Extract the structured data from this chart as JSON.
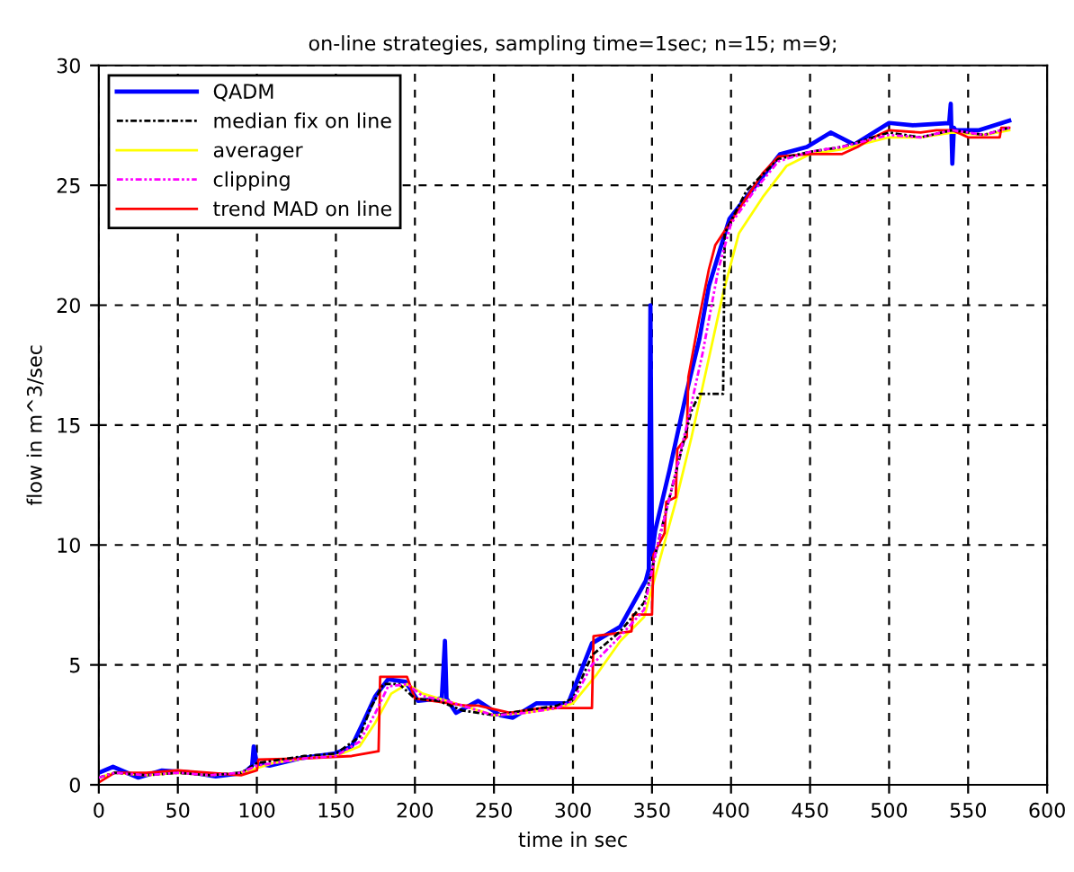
{
  "chart_data": {
    "type": "line",
    "title": "on-line strategies, sampling time=1sec; n=15; m=9;",
    "xlabel": "time in sec",
    "ylabel": "flow in m^3/sec",
    "xlim": [
      0,
      600
    ],
    "ylim": [
      0,
      30
    ],
    "xticks": [
      0,
      50,
      100,
      150,
      200,
      250,
      300,
      350,
      400,
      450,
      500,
      550,
      600
    ],
    "yticks": [
      0,
      5,
      10,
      15,
      20,
      25,
      30
    ],
    "grid": true,
    "legend": "top left",
    "series": [
      {
        "name": "QADM",
        "color": "#0000ff",
        "line_style": "solid",
        "x": [
          0,
          9,
          25,
          40,
          60,
          74,
          92,
          97,
          98,
          100,
          108,
          127,
          149,
          160,
          168,
          175,
          183,
          194,
          202,
          217,
          219,
          220,
          226,
          240,
          254,
          262,
          277,
          297,
          312,
          330,
          346,
          348,
          349,
          350,
          352,
          361,
          372,
          380,
          386,
          399,
          418,
          431,
          448,
          463,
          478,
          500,
          515,
          538,
          539,
          540,
          541,
          542,
          557,
          576
        ],
        "values": [
          0.5,
          0.75,
          0.3,
          0.6,
          0.5,
          0.35,
          0.5,
          0.8,
          1.6,
          0.9,
          0.8,
          1.1,
          1.3,
          1.6,
          2.7,
          3.7,
          4.4,
          4.3,
          3.5,
          3.6,
          6.0,
          3.6,
          3.0,
          3.5,
          2.9,
          2.8,
          3.4,
          3.4,
          5.9,
          6.6,
          8.5,
          9.0,
          20.0,
          9.6,
          10.6,
          13.1,
          16.4,
          18.6,
          20.8,
          23.6,
          25.2,
          26.3,
          26.6,
          27.2,
          26.7,
          27.6,
          27.5,
          27.6,
          28.4,
          25.9,
          27.4,
          27.3,
          27.3,
          27.7
        ]
      },
      {
        "name": "median fix on line",
        "color": "#000000",
        "line_style": "dashdot",
        "x": [
          0,
          10,
          30,
          50,
          70,
          90,
          100,
          110,
          130,
          150,
          165,
          172,
          180,
          190,
          200,
          215,
          230,
          250,
          270,
          290,
          300,
          312,
          330,
          345,
          350,
          355,
          365,
          375,
          380,
          395,
          396,
          410,
          430,
          450,
          470,
          500,
          520,
          540,
          560,
          576
        ],
        "values": [
          0.3,
          0.5,
          0.4,
          0.5,
          0.4,
          0.5,
          0.9,
          1.0,
          1.2,
          1.3,
          2.0,
          3.2,
          4.2,
          4.2,
          3.6,
          3.5,
          3.1,
          2.9,
          3.1,
          3.3,
          3.6,
          5.4,
          6.4,
          7.6,
          9.0,
          10.4,
          13.0,
          15.6,
          16.3,
          16.3,
          23.0,
          24.8,
          26.1,
          26.4,
          26.6,
          27.2,
          27.0,
          27.3,
          27.1,
          27.4
        ]
      },
      {
        "name": "averager",
        "color": "#ffff00",
        "line_style": "solid",
        "x": [
          0,
          10,
          30,
          50,
          70,
          90,
          100,
          110,
          130,
          150,
          165,
          175,
          185,
          195,
          205,
          220,
          235,
          250,
          270,
          290,
          300,
          315,
          330,
          345,
          355,
          365,
          375,
          385,
          395,
          405,
          420,
          435,
          450,
          470,
          500,
          520,
          540,
          560,
          576
        ],
        "values": [
          0.3,
          0.5,
          0.4,
          0.5,
          0.4,
          0.5,
          0.7,
          0.9,
          1.1,
          1.2,
          1.6,
          2.6,
          3.8,
          4.2,
          3.8,
          3.5,
          3.2,
          2.9,
          3.0,
          3.2,
          3.4,
          4.6,
          6.0,
          7.0,
          9.4,
          11.8,
          14.5,
          17.5,
          20.5,
          23.0,
          24.5,
          25.8,
          26.3,
          26.5,
          27.0,
          27.0,
          27.2,
          27.1,
          27.3
        ]
      },
      {
        "name": "clipping",
        "color": "#ff00ff",
        "line_style": "dashdotdot",
        "x": [
          0,
          10,
          30,
          50,
          70,
          90,
          100,
          110,
          130,
          150,
          165,
          175,
          183,
          195,
          205,
          220,
          235,
          250,
          270,
          290,
          300,
          312,
          330,
          345,
          352,
          362,
          372,
          382,
          392,
          400,
          415,
          430,
          450,
          470,
          500,
          520,
          540,
          560,
          576
        ],
        "values": [
          0.3,
          0.5,
          0.4,
          0.5,
          0.4,
          0.5,
          0.8,
          0.9,
          1.1,
          1.2,
          1.8,
          3.0,
          4.1,
          4.2,
          3.7,
          3.5,
          3.2,
          2.9,
          3.0,
          3.2,
          3.5,
          5.0,
          6.2,
          7.3,
          9.6,
          12.2,
          15.0,
          18.0,
          21.5,
          23.4,
          24.8,
          26.0,
          26.4,
          26.6,
          27.1,
          27.0,
          27.3,
          27.1,
          27.4
        ]
      },
      {
        "name": "trend MAD on line",
        "color": "#ff0000",
        "line_style": "solid",
        "x": [
          0,
          10,
          30,
          50,
          70,
          90,
          100,
          101,
          130,
          160,
          177,
          178,
          195,
          200,
          232,
          240,
          260,
          280,
          300,
          312,
          313,
          337,
          338,
          350,
          351,
          358,
          359,
          365,
          366,
          372,
          373,
          380,
          386,
          390,
          399,
          410,
          420,
          430,
          450,
          470,
          480,
          490,
          500,
          520,
          530,
          540,
          550,
          560,
          570,
          571,
          576
        ],
        "values": [
          0.1,
          0.5,
          0.5,
          0.6,
          0.5,
          0.4,
          0.6,
          1.05,
          1.1,
          1.2,
          1.4,
          4.5,
          4.5,
          3.6,
          3.3,
          3.3,
          3.0,
          3.2,
          3.2,
          3.2,
          6.2,
          6.4,
          7.1,
          7.1,
          9.6,
          10.5,
          11.8,
          12.0,
          14.0,
          14.5,
          17.0,
          19.5,
          21.5,
          22.5,
          23.4,
          24.5,
          25.5,
          26.2,
          26.3,
          26.3,
          26.6,
          27.0,
          27.3,
          27.2,
          27.3,
          27.3,
          27.0,
          27.0,
          27.0,
          27.4,
          27.4
        ]
      }
    ]
  }
}
